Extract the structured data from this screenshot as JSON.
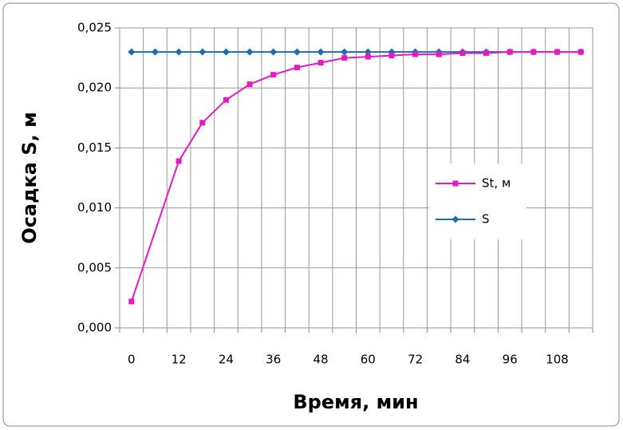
{
  "chart_data": {
    "type": "line",
    "x_label": "Время, мин",
    "y_label": "Осадка S, м",
    "xlim": [
      -3,
      117
    ],
    "xticks": [
      0,
      12,
      24,
      36,
      48,
      60,
      72,
      84,
      96,
      108
    ],
    "ylim": [
      0,
      0.025
    ],
    "yticks": [
      {
        "value": 0,
        "label": "0,000"
      },
      {
        "value": 0.005,
        "label": "0,005"
      },
      {
        "value": 0.01,
        "label": "0,010"
      },
      {
        "value": 0.015,
        "label": "0,015"
      },
      {
        "value": 0.02,
        "label": "0,020"
      },
      {
        "value": 0.025,
        "label": "0,025"
      }
    ],
    "grid": true,
    "legend": "right",
    "series": [
      {
        "name": "St, м",
        "color": "#e619c3",
        "marker": "square",
        "x": [
          0,
          12,
          18,
          24,
          30,
          36,
          42,
          48,
          54,
          60,
          66,
          72,
          78,
          84,
          90,
          96,
          102,
          108,
          114
        ],
        "values": [
          0.0022,
          0.0139,
          0.0171,
          0.019,
          0.0203,
          0.0211,
          0.0217,
          0.0221,
          0.0225,
          0.0226,
          0.0227,
          0.0228,
          0.0228,
          0.0229,
          0.0229,
          0.023,
          0.023,
          0.023,
          0.023
        ]
      },
      {
        "name": "S",
        "color": "#1f6bb0",
        "marker": "diamond",
        "x": [
          0,
          6,
          12,
          18,
          24,
          30,
          36,
          42,
          48,
          54,
          60,
          66,
          72,
          78,
          84,
          90,
          96,
          102,
          108,
          114
        ],
        "values": [
          0.023,
          0.023,
          0.023,
          0.023,
          0.023,
          0.023,
          0.023,
          0.023,
          0.023,
          0.023,
          0.023,
          0.023,
          0.023,
          0.023,
          0.023,
          0.023,
          0.023,
          0.023,
          0.023,
          0.023
        ]
      }
    ]
  }
}
